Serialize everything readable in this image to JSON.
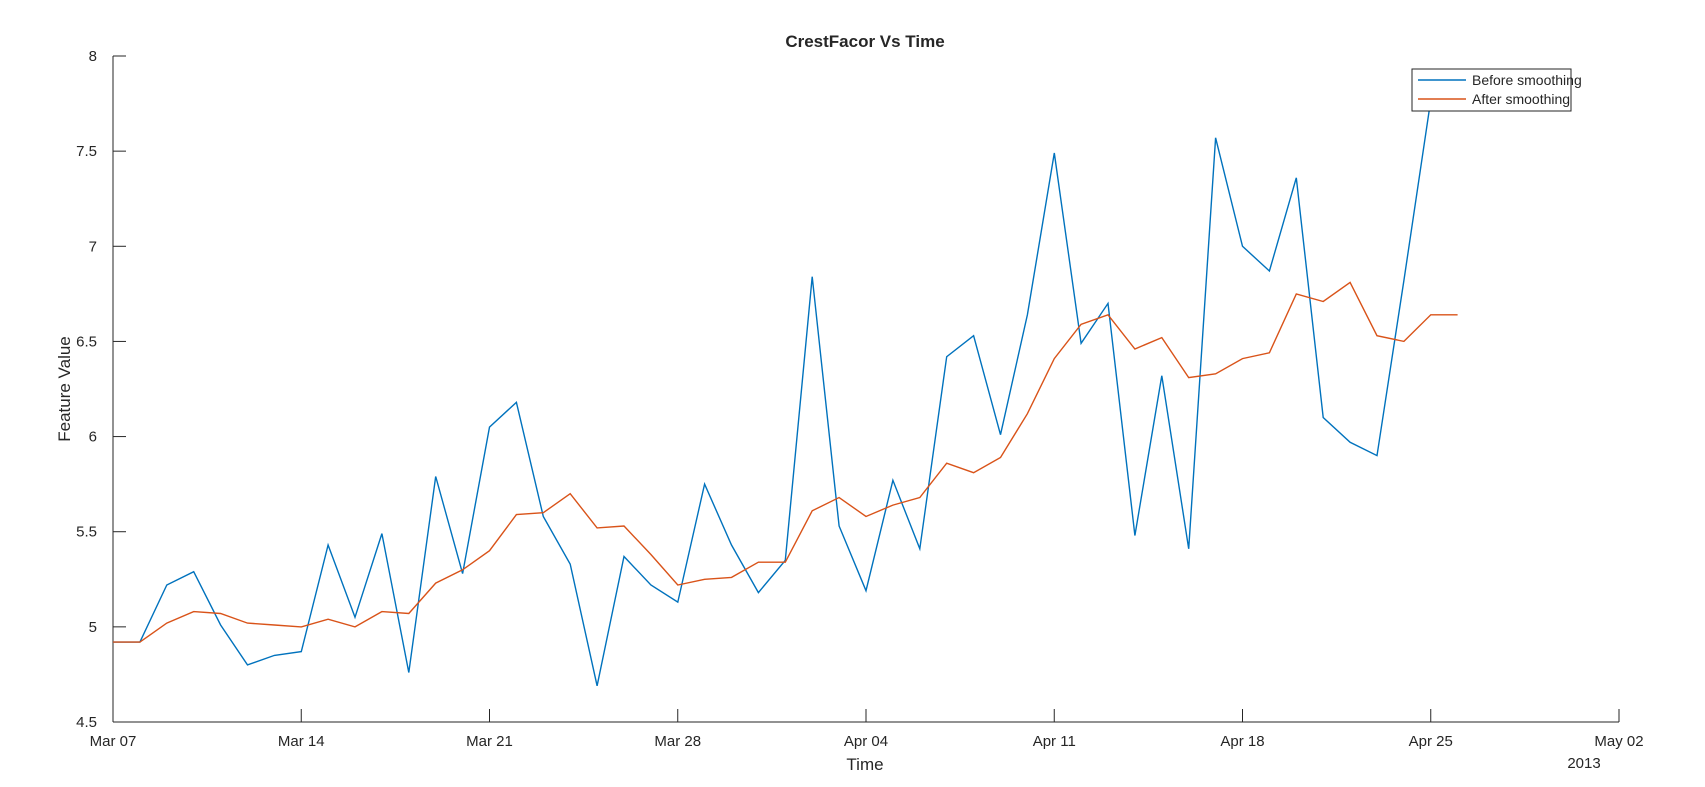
{
  "chart_data": {
    "type": "line",
    "title": "CrestFacor Vs Time",
    "xlabel": "Time",
    "ylabel": "Feature Value",
    "year_label": "2013",
    "xlim": [
      "2013-03-07",
      "2013-05-02"
    ],
    "ylim": [
      4.5,
      8
    ],
    "x_ticks": [
      {
        "date": "2013-03-07",
        "label": "Mar 07"
      },
      {
        "date": "2013-03-14",
        "label": "Mar 14"
      },
      {
        "date": "2013-03-21",
        "label": "Mar 21"
      },
      {
        "date": "2013-03-28",
        "label": "Mar 28"
      },
      {
        "date": "2013-04-04",
        "label": "Apr 04"
      },
      {
        "date": "2013-04-11",
        "label": "Apr 11"
      },
      {
        "date": "2013-04-18",
        "label": "Apr 18"
      },
      {
        "date": "2013-04-25",
        "label": "Apr 25"
      },
      {
        "date": "2013-05-02",
        "label": "May 02"
      }
    ],
    "y_ticks": [
      {
        "value": 4.5,
        "label": "4.5"
      },
      {
        "value": 5,
        "label": "5"
      },
      {
        "value": 5.5,
        "label": "5.5"
      },
      {
        "value": 6,
        "label": "6"
      },
      {
        "value": 6.5,
        "label": "6.5"
      },
      {
        "value": 7,
        "label": "7"
      },
      {
        "value": 7.5,
        "label": "7.5"
      },
      {
        "value": 8,
        "label": "8"
      }
    ],
    "grid": false,
    "legend_position": "top-right",
    "x": [
      "2013-03-07",
      "2013-03-08",
      "2013-03-09",
      "2013-03-10",
      "2013-03-11",
      "2013-03-12",
      "2013-03-13",
      "2013-03-14",
      "2013-03-15",
      "2013-03-16",
      "2013-03-17",
      "2013-03-18",
      "2013-03-19",
      "2013-03-20",
      "2013-03-21",
      "2013-03-22",
      "2013-03-23",
      "2013-03-24",
      "2013-03-25",
      "2013-03-26",
      "2013-03-27",
      "2013-03-28",
      "2013-03-29",
      "2013-03-30",
      "2013-03-31",
      "2013-04-01",
      "2013-04-02",
      "2013-04-03",
      "2013-04-04",
      "2013-04-05",
      "2013-04-06",
      "2013-04-07",
      "2013-04-08",
      "2013-04-09",
      "2013-04-10",
      "2013-04-11",
      "2013-04-12",
      "2013-04-13",
      "2013-04-14",
      "2013-04-15",
      "2013-04-16",
      "2013-04-17",
      "2013-04-18",
      "2013-04-19",
      "2013-04-20",
      "2013-04-21",
      "2013-04-22",
      "2013-04-23",
      "2013-04-24",
      "2013-04-25",
      "2013-04-26"
    ],
    "series": [
      {
        "name": "Before smoothing",
        "color": "#0072BD",
        "values": [
          4.92,
          4.92,
          5.22,
          5.29,
          5.01,
          4.8,
          4.85,
          4.87,
          5.43,
          5.05,
          5.49,
          4.76,
          5.79,
          5.28,
          6.05,
          6.18,
          5.58,
          5.33,
          4.69,
          5.37,
          5.22,
          5.13,
          5.75,
          5.43,
          5.18,
          5.35,
          6.84,
          5.53,
          5.19,
          5.77,
          5.41,
          6.42,
          6.53,
          6.01,
          6.64,
          7.49,
          6.49,
          6.7,
          5.48,
          6.32,
          5.41,
          7.57,
          7.0,
          6.87,
          7.36,
          6.1,
          5.97,
          5.9,
          6.82,
          7.77,
          7.77
        ]
      },
      {
        "name": "After smoothing",
        "color": "#D95319",
        "values": [
          4.92,
          4.92,
          5.02,
          5.08,
          5.07,
          5.02,
          5.01,
          5.0,
          5.04,
          5.0,
          5.08,
          5.07,
          5.23,
          5.3,
          5.4,
          5.59,
          5.6,
          5.7,
          5.52,
          5.53,
          5.38,
          5.22,
          5.25,
          5.26,
          5.34,
          5.34,
          5.61,
          5.68,
          5.58,
          5.64,
          5.68,
          5.86,
          5.81,
          5.89,
          6.12,
          6.41,
          6.59,
          6.64,
          6.46,
          6.52,
          6.31,
          6.33,
          6.41,
          6.44,
          6.75,
          6.71,
          6.81,
          6.53,
          6.5,
          6.64,
          6.64
        ]
      }
    ]
  }
}
